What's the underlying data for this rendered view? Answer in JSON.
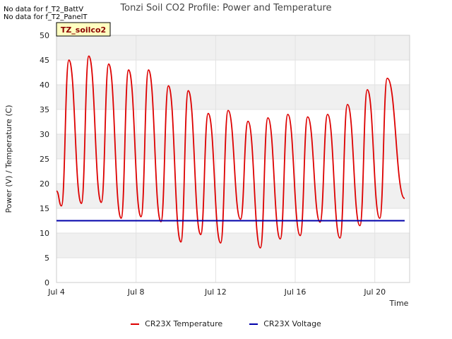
{
  "notes": [
    "No data for f_T2_BattV",
    "No data for f_T2_PanelT"
  ],
  "badge": "TZ_soilco2",
  "chart_data": {
    "type": "line",
    "title": "Tonzi Soil CO2 Profile: Power and Temperature",
    "xlabel": "Time",
    "ylabel": "Power (V) / Temperature (C)",
    "xlim": [
      "2023-07-04",
      "2023-07-21T18:00"
    ],
    "ylim": [
      0,
      50
    ],
    "yticks": [
      0,
      5,
      10,
      15,
      20,
      25,
      30,
      35,
      40,
      45,
      50
    ],
    "xticks": [
      {
        "label": "Jul 4",
        "date": "2023-07-04"
      },
      {
        "label": "Jul 8",
        "date": "2023-07-08"
      },
      {
        "label": "Jul 12",
        "date": "2023-07-12"
      },
      {
        "label": "Jul 16",
        "date": "2023-07-16"
      },
      {
        "label": "Jul 20",
        "date": "2023-07-20"
      }
    ],
    "grid": true,
    "legend_position": "bottom",
    "series": [
      {
        "name": "CR23X Temperature",
        "color": "#dd0000",
        "daily_min": [
          {
            "date": "2023-07-04T06:00",
            "value": 15.5
          },
          {
            "date": "2023-07-05T06:00",
            "value": 16.0
          },
          {
            "date": "2023-07-06T06:00",
            "value": 16.2
          },
          {
            "date": "2023-07-07T06:00",
            "value": 13.0
          },
          {
            "date": "2023-07-08T06:00",
            "value": 13.3
          },
          {
            "date": "2023-07-09T06:00",
            "value": 12.3
          },
          {
            "date": "2023-07-10T06:00",
            "value": 8.2
          },
          {
            "date": "2023-07-11T06:00",
            "value": 9.7
          },
          {
            "date": "2023-07-12T06:00",
            "value": 8.0
          },
          {
            "date": "2023-07-13T06:00",
            "value": 12.8
          },
          {
            "date": "2023-07-14T06:00",
            "value": 7.0
          },
          {
            "date": "2023-07-15T06:00",
            "value": 8.8
          },
          {
            "date": "2023-07-16T06:00",
            "value": 9.5
          },
          {
            "date": "2023-07-17T06:00",
            "value": 12.2
          },
          {
            "date": "2023-07-18T06:00",
            "value": 9.0
          },
          {
            "date": "2023-07-19T06:00",
            "value": 11.5
          },
          {
            "date": "2023-07-20T06:00",
            "value": 13.0
          }
        ],
        "daily_max": [
          {
            "date": "2023-07-04T15:00",
            "value": 45.0
          },
          {
            "date": "2023-07-05T15:00",
            "value": 45.8
          },
          {
            "date": "2023-07-06T15:00",
            "value": 44.2
          },
          {
            "date": "2023-07-07T15:00",
            "value": 43.0
          },
          {
            "date": "2023-07-08T15:00",
            "value": 43.0
          },
          {
            "date": "2023-07-09T15:00",
            "value": 39.8
          },
          {
            "date": "2023-07-10T15:00",
            "value": 38.8
          },
          {
            "date": "2023-07-11T15:00",
            "value": 34.2
          },
          {
            "date": "2023-07-12T15:00",
            "value": 34.8
          },
          {
            "date": "2023-07-13T15:00",
            "value": 32.6
          },
          {
            "date": "2023-07-14T15:00",
            "value": 33.3
          },
          {
            "date": "2023-07-15T15:00",
            "value": 34.0
          },
          {
            "date": "2023-07-16T15:00",
            "value": 33.5
          },
          {
            "date": "2023-07-17T15:00",
            "value": 34.0
          },
          {
            "date": "2023-07-18T15:00",
            "value": 36.0
          },
          {
            "date": "2023-07-19T15:00",
            "value": 39.0
          },
          {
            "date": "2023-07-20T15:00",
            "value": 41.3
          }
        ],
        "start": {
          "date": "2023-07-04T00:00",
          "value": 18.5
        },
        "end": {
          "date": "2023-07-21T12:00",
          "value": 17.0
        }
      },
      {
        "name": "CR23X Voltage",
        "color": "#0000aa",
        "x": [
          "2023-07-04",
          "2023-07-21T12:00"
        ],
        "values": [
          12.5,
          12.5
        ]
      }
    ]
  }
}
